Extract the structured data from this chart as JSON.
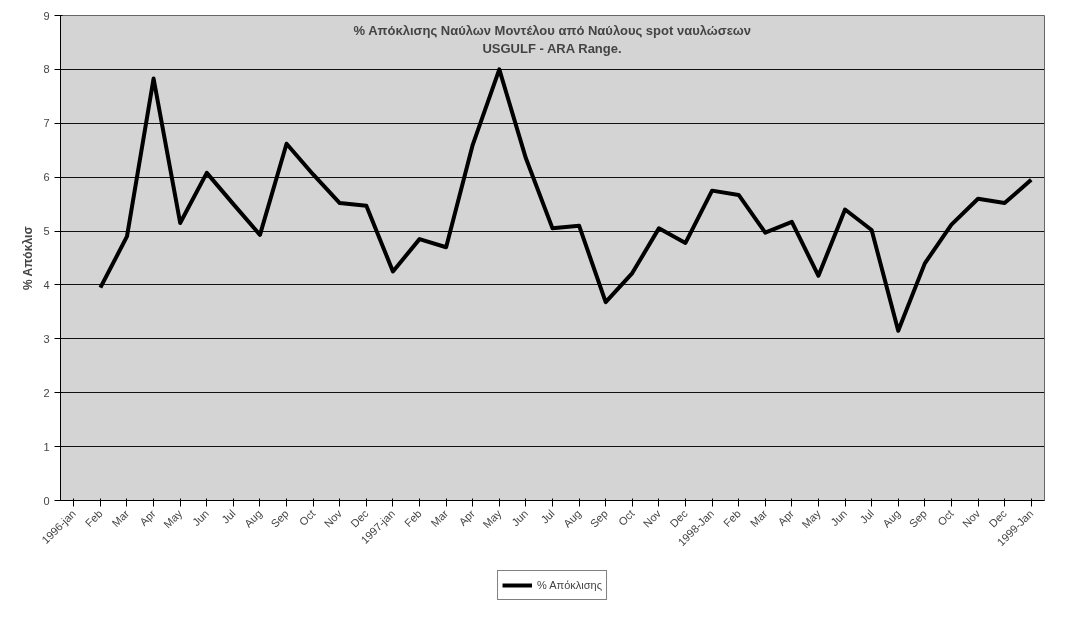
{
  "chart_data": {
    "type": "line",
    "title": "% Απόκλισης Ναύλων Μοντέλου από Ναύλους spot ναυλώσεων",
    "subtitle": "USGULF - ARA Range.",
    "ylabel": "% Απόκλισ",
    "categories": [
      "1996-jan",
      "Feb",
      "Mar",
      "Apr",
      "May",
      "Jun",
      "Jul",
      "Aug",
      "Sep",
      "Oct",
      "Nov",
      "Dec",
      "1997-jan",
      "Feb",
      "Mar",
      "Apr",
      "May",
      "Jun",
      "Jul",
      "Aug",
      "Sep",
      "Oct",
      "Nov",
      "Dec",
      "1998-Jan",
      "Feb",
      "Mar",
      "Apr",
      "May",
      "Jun",
      "Jul",
      "Aug",
      "Sep",
      "Oct",
      "Nov",
      "Dec",
      "1999-Jan"
    ],
    "series": [
      {
        "name": "% Απόκλισης",
        "color": "#000000",
        "values": [
          null,
          3.95,
          4.9,
          7.83,
          5.15,
          6.08,
          5.5,
          4.93,
          6.62,
          6.05,
          5.52,
          5.47,
          4.25,
          4.85,
          4.7,
          6.6,
          8.0,
          6.35,
          5.05,
          5.1,
          3.68,
          4.22,
          5.05,
          4.78,
          5.75,
          5.67,
          4.97,
          5.17,
          4.17,
          5.4,
          5.02,
          3.15,
          4.4,
          5.12,
          5.6,
          5.52,
          5.95
        ]
      }
    ],
    "ylim": [
      0,
      9
    ],
    "yticks": [
      0,
      1,
      2,
      3,
      4,
      5,
      6,
      7,
      8,
      9
    ],
    "grid": "y",
    "legend": "bottom",
    "marker": "none",
    "line_style": "solid"
  }
}
